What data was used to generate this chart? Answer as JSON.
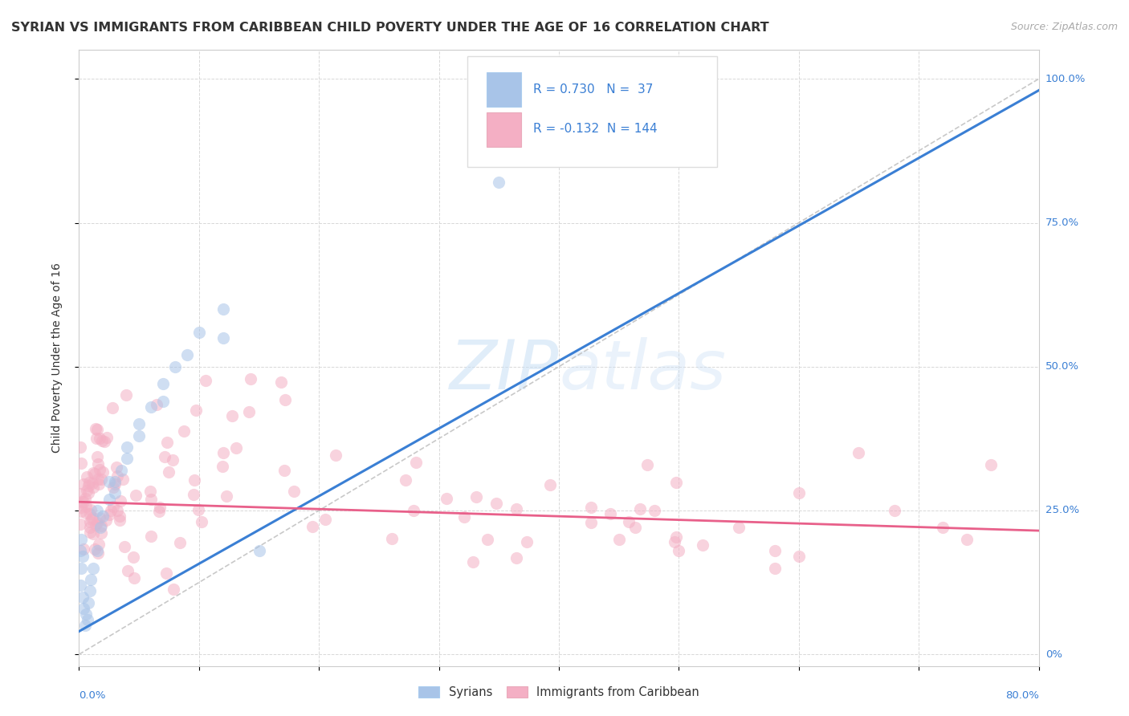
{
  "title": "SYRIAN VS IMMIGRANTS FROM CARIBBEAN CHILD POVERTY UNDER THE AGE OF 16 CORRELATION CHART",
  "source": "Source: ZipAtlas.com",
  "ylabel": "Child Poverty Under the Age of 16",
  "legend": {
    "syrian_R": "0.730",
    "syrian_N": "37",
    "carib_R": "-0.132",
    "carib_N": "144"
  },
  "syrian_color": "#a8c4e8",
  "carib_color": "#f4afc4",
  "syrian_line_color": "#3a7fd4",
  "carib_line_color": "#e8608a",
  "ref_line_color": "#bbbbbb",
  "legend_text_color": "#3a7fd4",
  "background_color": "#ffffff",
  "grid_color": "#d8d8d8",
  "axis_label_color": "#3a7fd4",
  "title_color": "#333333",
  "ylabel_color": "#333333",
  "xlim": [
    0.0,
    0.8
  ],
  "ylim": [
    -0.02,
    1.05
  ],
  "xtick_positions": [
    0.0,
    0.1,
    0.2,
    0.3,
    0.4,
    0.5,
    0.6,
    0.7,
    0.8
  ],
  "ytick_positions": [
    0.0,
    0.25,
    0.5,
    0.75,
    1.0
  ],
  "ytick_labels_right": [
    "0%",
    "25.0%",
    "50.0%",
    "75.0%",
    "100.0%"
  ],
  "syr_line_x": [
    0.0,
    0.8
  ],
  "syr_line_y": [
    0.04,
    0.98
  ],
  "car_line_x": [
    0.0,
    0.8
  ],
  "car_line_y": [
    0.265,
    0.215
  ],
  "ref_line_x": [
    0.0,
    0.8
  ],
  "ref_line_y": [
    0.0,
    1.0
  ],
  "watermark_text": "ZIPatlas",
  "scatter_size": 120,
  "scatter_alpha": 0.55
}
